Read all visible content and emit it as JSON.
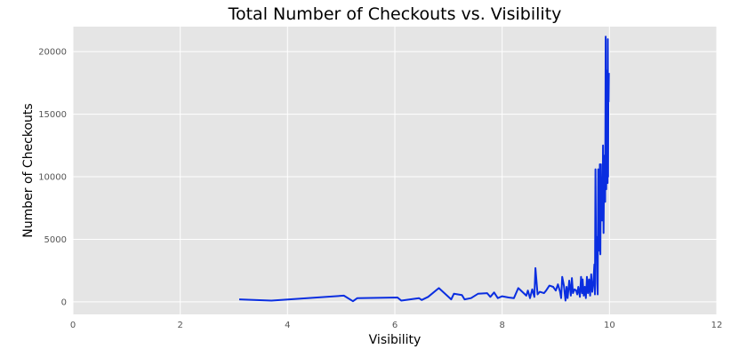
{
  "chart_data": {
    "type": "line",
    "title": "Total Number of Checkouts vs. Visibility",
    "xlabel": "Visibility",
    "ylabel": "Number of Checkouts",
    "xlim": [
      0,
      12
    ],
    "ylim": [
      -1000,
      22000
    ],
    "xticks": [
      0,
      2,
      4,
      6,
      8,
      10,
      12
    ],
    "yticks": [
      0,
      5000,
      10000,
      15000,
      20000
    ],
    "grid": true,
    "colors": {
      "background": "#e5e5e5",
      "grid": "#ffffff",
      "line": "#0a2ee0"
    },
    "series": [
      {
        "x": [
          3.1,
          3.7,
          5.05,
          5.22,
          5.3,
          6.05,
          6.12,
          6.45,
          6.5,
          6.62,
          6.82,
          7.05,
          7.1,
          7.25,
          7.3,
          7.42,
          7.55,
          7.72,
          7.78,
          7.85,
          7.92,
          8.0,
          8.12,
          8.22,
          8.3,
          8.45,
          8.48,
          8.52,
          8.56,
          8.6,
          8.62,
          8.66,
          8.7,
          8.78,
          8.82,
          8.88,
          8.95,
          9.0,
          9.04,
          9.08,
          9.1,
          9.12,
          9.15,
          9.18,
          9.2,
          9.22,
          9.25,
          9.28,
          9.3,
          9.32,
          9.35,
          9.38,
          9.4,
          9.42,
          9.45,
          9.47,
          9.49,
          9.5,
          9.52,
          9.54,
          9.56,
          9.58,
          9.6,
          9.62,
          9.64,
          9.66,
          9.68,
          9.7,
          9.72,
          9.73,
          9.74,
          9.75,
          9.76,
          9.77,
          9.78,
          9.79,
          9.8,
          9.81,
          9.82,
          9.83,
          9.84,
          9.85,
          9.86,
          9.87,
          9.88,
          9.89,
          9.9,
          9.91,
          9.92,
          9.93,
          9.94,
          9.95,
          9.96,
          9.965,
          9.97,
          9.975,
          9.98,
          9.985,
          9.99
        ],
        "y": [
          200,
          100,
          500,
          50,
          300,
          350,
          100,
          300,
          150,
          400,
          1100,
          200,
          650,
          550,
          200,
          300,
          650,
          700,
          400,
          750,
          300,
          450,
          350,
          300,
          1100,
          500,
          900,
          300,
          1000,
          400,
          2700,
          600,
          800,
          700,
          900,
          1300,
          1200,
          900,
          1400,
          800,
          300,
          2000,
          1300,
          100,
          1200,
          300,
          1700,
          500,
          1900,
          700,
          1000,
          900,
          600,
          1200,
          400,
          2000,
          700,
          1800,
          500,
          1200,
          300,
          2000,
          700,
          1800,
          500,
          2200,
          800,
          1500,
          3000,
          600,
          10600,
          3700,
          5200,
          1500,
          600,
          10600,
          9800,
          4100,
          11000,
          3800,
          11000,
          6500,
          9800,
          6500,
          12500,
          5500,
          10500,
          11700,
          8000,
          21200,
          9000,
          13000,
          18500,
          9500,
          21000,
          10000,
          17800,
          16000,
          18300
        ]
      }
    ]
  }
}
